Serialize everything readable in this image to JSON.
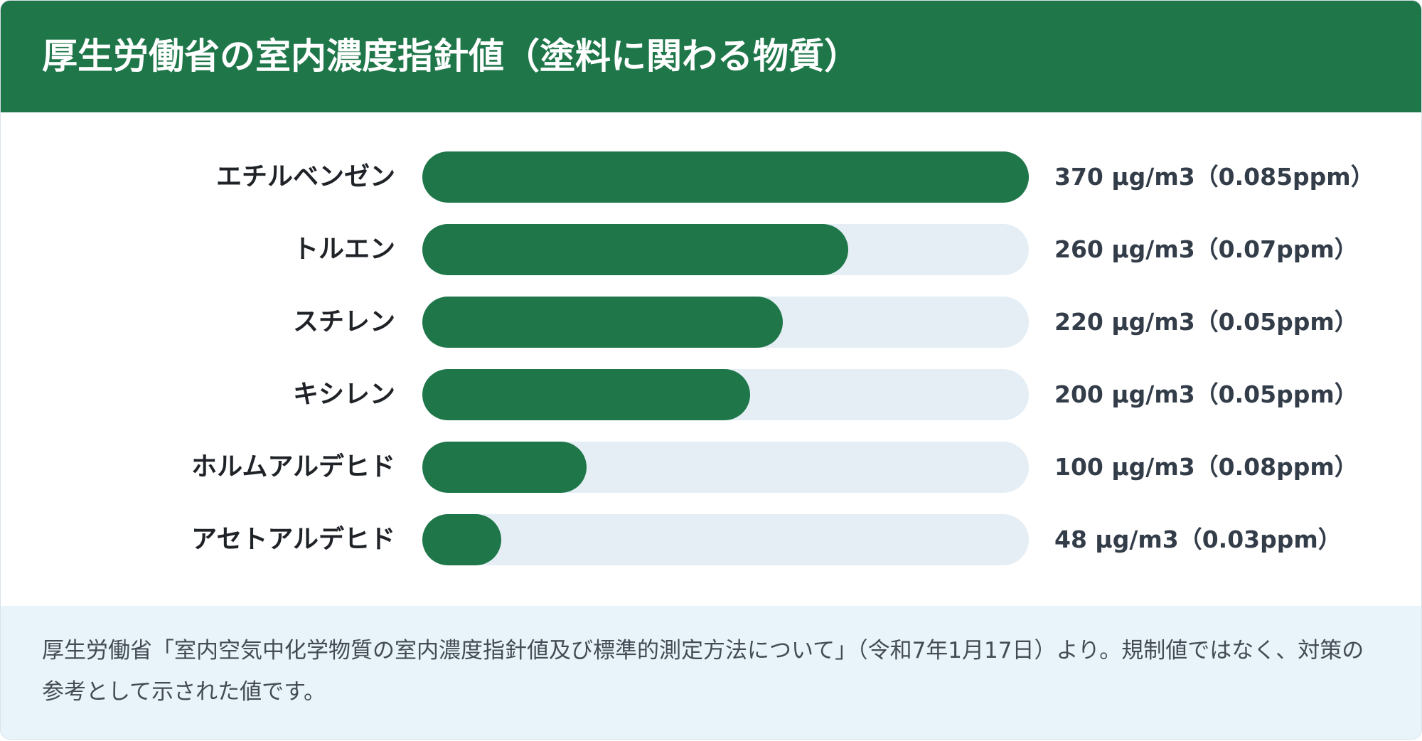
{
  "title": "厚生労働省の室内濃度指針値（塗料に関わる物質）",
  "note": "厚生労働省「室内空気中化学物質の室内濃度指針値及び標準的測定方法について」（令和7年1月17日）より。規制値ではなく、対策の参考として示された値です。",
  "colors": {
    "header": "#1e7649",
    "bar_fill": "#1e7649",
    "bar_track": "#e4eef4",
    "note_background": "#e8f4fa"
  },
  "chart_data": {
    "type": "bar",
    "orientation": "horizontal",
    "categories": [
      "エチルベンゼン",
      "トルエン",
      "スチレン",
      "キシレン",
      "ホルムアルデヒド",
      "アセトアルデヒド"
    ],
    "values": [
      370,
      260,
      220,
      200,
      100,
      48
    ],
    "unit": "µg/m3",
    "xlim": [
      0,
      370
    ],
    "value_labels": [
      "370 µg/m3（0.085ppm）",
      "260 µg/m3（0.07ppm）",
      "220 µg/m3（0.05ppm）",
      "200 µg/m3（0.05ppm）",
      "100 µg/m3（0.08ppm）",
      "48 µg/m3（0.03ppm）"
    ],
    "title": "厚生労働省の室内濃度指針値（塗料に関わる物質）",
    "xlabel": "",
    "ylabel": "",
    "grid": false,
    "legend": "none"
  }
}
